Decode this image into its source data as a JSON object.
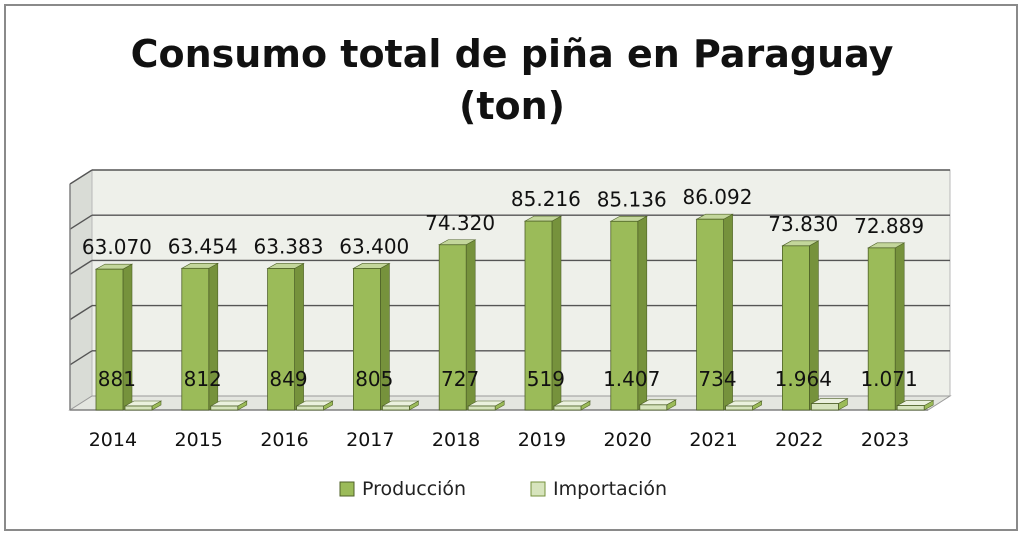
{
  "chart_data": {
    "type": "bar",
    "title_line1": "Consumo total de piña en Paraguay",
    "title_line2": "(ton)",
    "categories": [
      "2014",
      "2015",
      "2016",
      "2017",
      "2018",
      "2019",
      "2020",
      "2021",
      "2022",
      "2023"
    ],
    "series": [
      {
        "name": "Producción",
        "values": [
          63070,
          63454,
          63383,
          63400,
          74320,
          85216,
          85136,
          86092,
          73830,
          72889
        ],
        "labels": [
          "63.070",
          "63.454",
          "63.383",
          "63.400",
          "74.320",
          "85.216",
          "85.136",
          "86.092",
          "73.830",
          "72.889"
        ],
        "color": "#9bbb59"
      },
      {
        "name": "Importación",
        "values": [
          881,
          812,
          849,
          805,
          727,
          519,
          1407,
          734,
          1964,
          1071
        ],
        "labels": [
          "881",
          "812",
          "849",
          "805",
          "727",
          "519",
          "1.407",
          "734",
          "1.964",
          "1.071"
        ],
        "color": "#d7e4bd"
      }
    ],
    "ylim": [
      0,
      100000
    ],
    "grid": true,
    "legend_position": "bottom",
    "style": "3d-column"
  }
}
